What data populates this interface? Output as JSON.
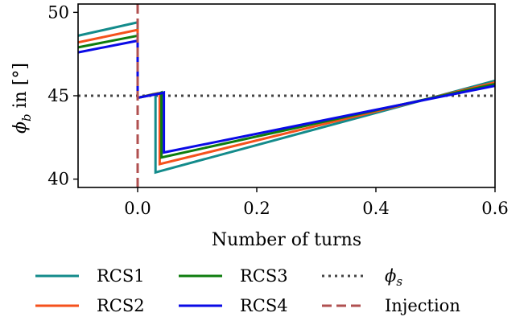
{
  "chart_data": {
    "type": "line",
    "xlabel": "Number of turns",
    "ylabel": "ϕb in [°]",
    "ylabel_parts": {
      "sym": "ϕ",
      "sub": "b",
      "rest": " in [°]"
    },
    "xlim": [
      -0.1,
      0.6
    ],
    "ylim": [
      39.5,
      50.5
    ],
    "xticks": [
      0.0,
      0.2,
      0.4,
      0.6
    ],
    "xtick_labels": [
      "0.0",
      "0.2",
      "0.4",
      "0.6"
    ],
    "yticks": [
      40,
      45,
      50
    ],
    "ytick_labels": [
      "40",
      "45",
      "50"
    ],
    "grid": false,
    "legend_position": "below",
    "series": [
      {
        "name": "RCS1",
        "color": "#138b8b",
        "points": [
          [
            -0.1,
            48.6
          ],
          [
            0.0,
            49.4
          ],
          [
            0.0,
            44.9
          ],
          [
            0.003,
            44.9
          ],
          [
            0.027,
            45.1
          ],
          [
            0.03,
            45.1
          ],
          [
            0.03,
            40.4
          ],
          [
            0.6,
            45.9
          ]
        ]
      },
      {
        "name": "RCS2",
        "color": "#f5511c",
        "points": [
          [
            -0.1,
            48.2
          ],
          [
            0.0,
            48.95
          ],
          [
            0.0,
            44.9
          ],
          [
            0.003,
            44.9
          ],
          [
            0.034,
            45.15
          ],
          [
            0.037,
            45.15
          ],
          [
            0.037,
            40.9
          ],
          [
            0.6,
            45.8
          ]
        ]
      },
      {
        "name": "RCS3",
        "color": "#0e7d0e",
        "points": [
          [
            -0.1,
            47.9
          ],
          [
            0.0,
            48.6
          ],
          [
            0.0,
            44.9
          ],
          [
            0.003,
            44.9
          ],
          [
            0.037,
            45.15
          ],
          [
            0.04,
            45.2
          ],
          [
            0.04,
            41.3
          ],
          [
            0.6,
            45.7
          ]
        ]
      },
      {
        "name": "RCS4",
        "color": "#0a0ae6",
        "points": [
          [
            -0.1,
            47.6
          ],
          [
            0.0,
            48.3
          ],
          [
            0.0,
            44.9
          ],
          [
            0.003,
            44.9
          ],
          [
            0.04,
            45.15
          ],
          [
            0.044,
            45.2
          ],
          [
            0.044,
            41.6
          ],
          [
            0.6,
            45.6
          ]
        ]
      }
    ],
    "reference_lines": [
      {
        "name": "ϕs",
        "name_parts": {
          "sym": "ϕ",
          "sub": "s"
        },
        "orientation": "horizontal",
        "value": 45,
        "style": "dotted",
        "color": "#444444"
      },
      {
        "name": "Injection",
        "orientation": "vertical",
        "value": 0.0,
        "style": "dashed",
        "color": "#b05050"
      }
    ]
  }
}
